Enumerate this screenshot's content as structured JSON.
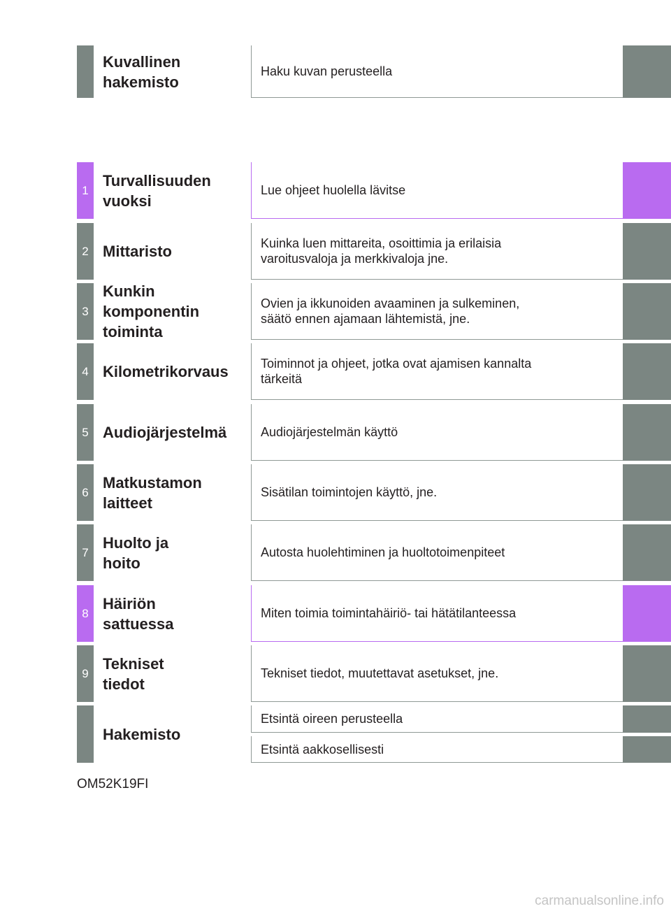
{
  "picture_index": {
    "title": "Kuvallinen\nhakemisto",
    "description": "Haku kuvan perusteella"
  },
  "chapters": [
    {
      "number": "1",
      "title": "Turvallisuuden\nvuoksi",
      "description": "Lue ohjeet huolella lävitse"
    },
    {
      "number": "2",
      "title": "Mittaristo",
      "description": "Kuinka luen mittareita, osoittimia ja erilaisia\nvaroitusvaloja ja merkkivaloja jne."
    },
    {
      "number": "3",
      "title": "Kunkin\nkomponentin\ntoiminta",
      "description": "Ovien ja ikkunoiden avaaminen ja sulkeminen,\nsäätö ennen ajamaan lähtemistä, jne."
    },
    {
      "number": "4",
      "title": "Kilometrikorvaus",
      "description": "Toiminnot ja ohjeet, jotka ovat ajamisen kannalta\ntärkeitä"
    },
    {
      "number": "5",
      "title": "Audiojärjestelmä",
      "description": "Audiojärjestelmän käyttö"
    },
    {
      "number": "6",
      "title": "Matkustamon\nlaitteet",
      "description": "Sisätilan toimintojen käyttö, jne."
    },
    {
      "number": "7",
      "title": "Huolto ja\nhoito",
      "description": "Autosta huolehtiminen ja huoltotoimenpiteet"
    },
    {
      "number": "8",
      "title": "Häiriön\nsattuessa",
      "description": "Miten toimia toimintahäiriö- tai hätätilanteessa"
    },
    {
      "number": "9",
      "title": "Tekniset\ntiedot",
      "description": "Tekniset tiedot, muutettavat asetukset, jne."
    }
  ],
  "index": {
    "title": "Hakemisto",
    "items": [
      "Etsintä oireen perusteella",
      "Etsintä aakkosellisesti"
    ]
  },
  "footer": {
    "code": "OM52K19FI",
    "watermark": "carmanualsonline.info"
  },
  "colors": {
    "tab_gray": "#7b8682",
    "tab_accent": "#b96bf0"
  }
}
